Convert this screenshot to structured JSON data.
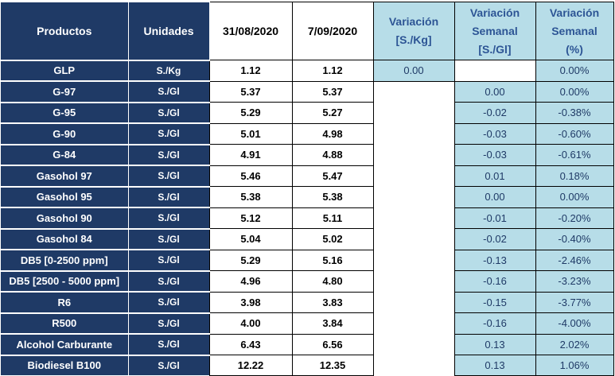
{
  "headers": {
    "productos": "Productos",
    "unidades": "Unidades",
    "date1": "31/08/2020",
    "date2": "7/09/2020",
    "var_kg_line1": "Variación",
    "var_kg_line2": "[S./Kg]",
    "var_sem_line1": "Variación",
    "var_sem_line2": "Semanal",
    "var_sem_line3": "[S./Gl]",
    "var_pct_line1": "Variación",
    "var_pct_line2": "Semanal",
    "var_pct_line3": "(%)"
  },
  "rows": [
    {
      "product": "GLP",
      "unit": "S./Kg",
      "v1": "1.12",
      "v2": "1.12",
      "var_kg": "0.00",
      "var_sem": "",
      "var_pct": "0.00%"
    },
    {
      "product": "G-97",
      "unit": "S./Gl",
      "v1": "5.37",
      "v2": "5.37",
      "var_kg": "",
      "var_sem": "0.00",
      "var_pct": "0.00%"
    },
    {
      "product": "G-95",
      "unit": "S./Gl",
      "v1": "5.29",
      "v2": "5.27",
      "var_kg": "",
      "var_sem": "-0.02",
      "var_pct": "-0.38%"
    },
    {
      "product": "G-90",
      "unit": "S./Gl",
      "v1": "5.01",
      "v2": "4.98",
      "var_kg": "",
      "var_sem": "-0.03",
      "var_pct": "-0.60%"
    },
    {
      "product": "G-84",
      "unit": "S./Gl",
      "v1": "4.91",
      "v2": "4.88",
      "var_kg": "",
      "var_sem": "-0.03",
      "var_pct": "-0.61%"
    },
    {
      "product": "Gasohol 97",
      "unit": "S./Gl",
      "v1": "5.46",
      "v2": "5.47",
      "var_kg": "",
      "var_sem": "0.01",
      "var_pct": "0.18%"
    },
    {
      "product": "Gasohol 95",
      "unit": "S./Gl",
      "v1": "5.38",
      "v2": "5.38",
      "var_kg": "",
      "var_sem": "0.00",
      "var_pct": "0.00%"
    },
    {
      "product": "Gasohol 90",
      "unit": "S./Gl",
      "v1": "5.12",
      "v2": "5.11",
      "var_kg": "",
      "var_sem": "-0.01",
      "var_pct": "-0.20%"
    },
    {
      "product": "Gasohol 84",
      "unit": "S./Gl",
      "v1": "5.04",
      "v2": "5.02",
      "var_kg": "",
      "var_sem": "-0.02",
      "var_pct": "-0.40%"
    },
    {
      "product": "DB5 [0-2500 ppm]",
      "unit": "S./Gl",
      "v1": "5.29",
      "v2": "5.16",
      "var_kg": "",
      "var_sem": "-0.13",
      "var_pct": "-2.46%"
    },
    {
      "product": "DB5 [2500 - 5000 ppm]",
      "unit": "S./Gl",
      "v1": "4.96",
      "v2": "4.80",
      "var_kg": "",
      "var_sem": "-0.16",
      "var_pct": "-3.23%"
    },
    {
      "product": "R6",
      "unit": "S./Gl",
      "v1": "3.98",
      "v2": "3.83",
      "var_kg": "",
      "var_sem": "-0.15",
      "var_pct": "-3.77%"
    },
    {
      "product": "R500",
      "unit": "S./Gl",
      "v1": "4.00",
      "v2": "3.84",
      "var_kg": "",
      "var_sem": "-0.16",
      "var_pct": "-4.00%"
    },
    {
      "product": "Alcohol Carburante",
      "unit": "S./Gl",
      "v1": "6.43",
      "v2": "6.56",
      "var_kg": "",
      "var_sem": "0.13",
      "var_pct": "2.02%"
    },
    {
      "product": "Biodiesel B100",
      "unit": "S./Gl",
      "v1": "12.22",
      "v2": "12.35",
      "var_kg": "",
      "var_sem": "0.13",
      "var_pct": "1.06%"
    }
  ],
  "colors": {
    "header_dark": "#1f3a66",
    "variation_fill": "#b7dde8",
    "variation_text": "#2d5595"
  }
}
